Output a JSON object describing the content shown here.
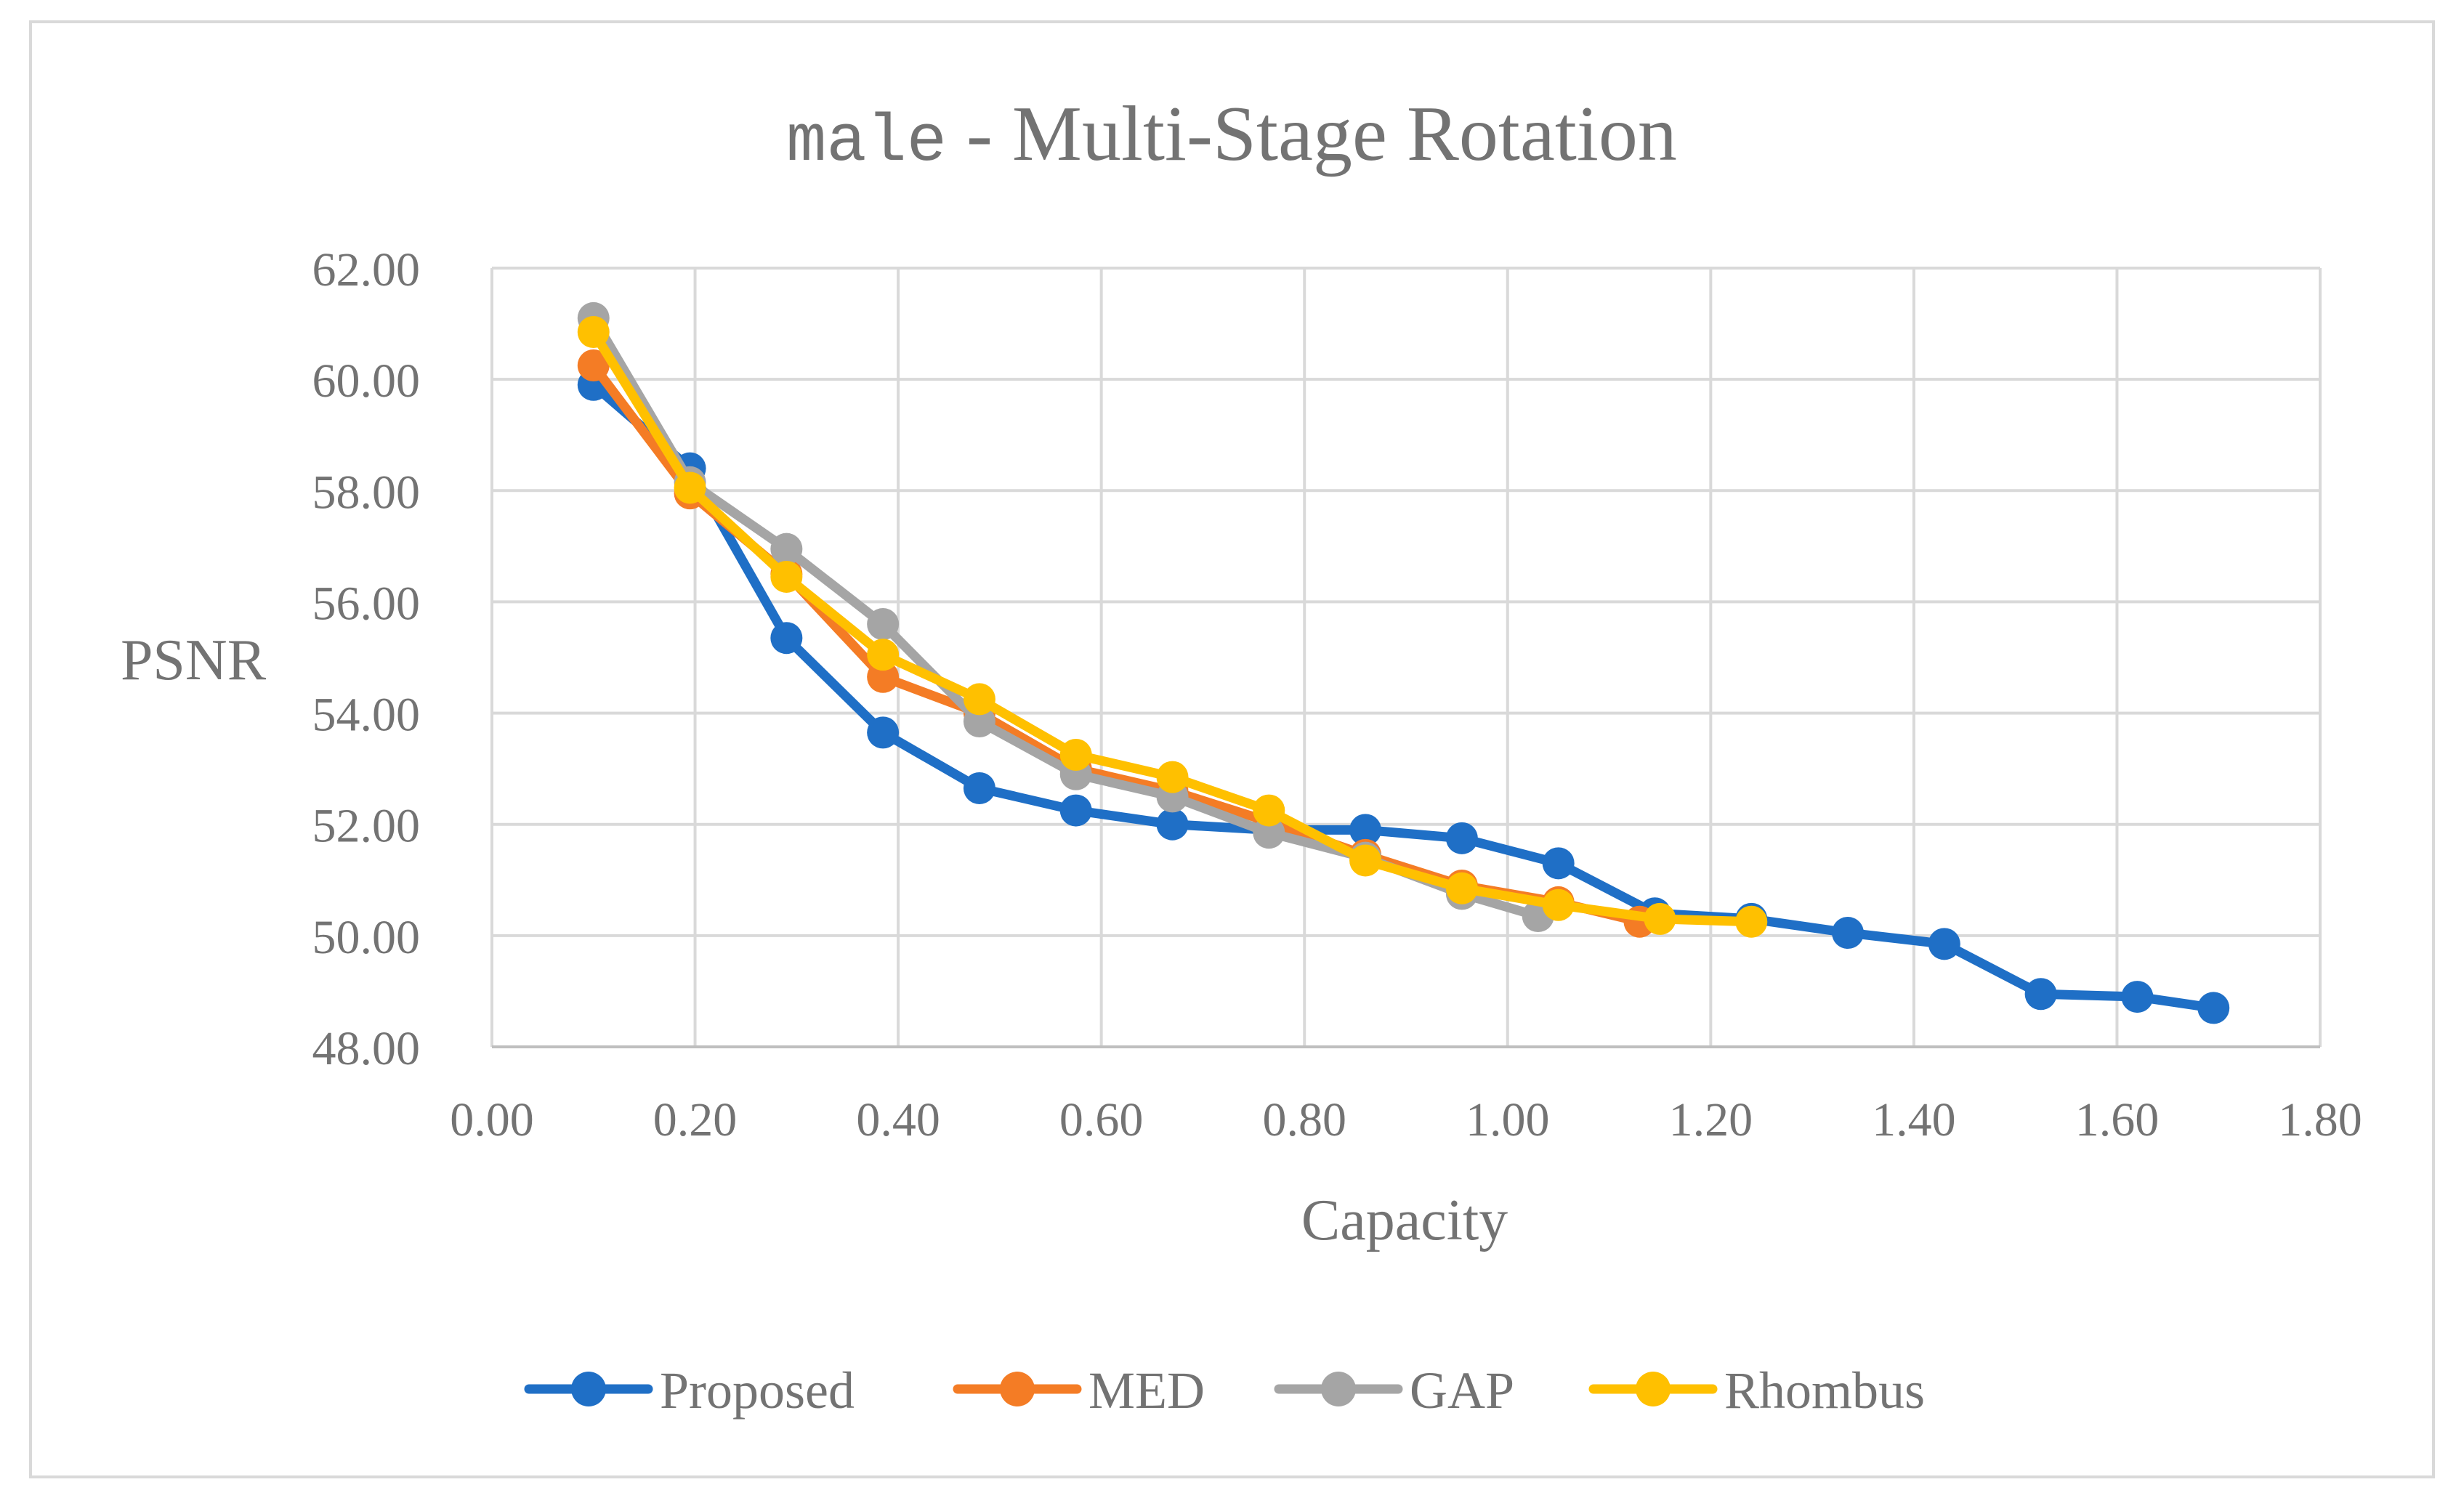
{
  "chart_data": {
    "type": "line",
    "title_mono": "male",
    "title_rest": " - Multi-Stage Rotation",
    "xlabel": "Capacity",
    "ylabel": "PSNR",
    "xlim": [
      0,
      1.8
    ],
    "ylim": [
      48,
      62
    ],
    "x_ticks": [
      "0.00",
      "0.20",
      "0.40",
      "0.60",
      "0.80",
      "1.00",
      "1.20",
      "1.40",
      "1.60",
      "1.80"
    ],
    "y_ticks": [
      "48.00",
      "50.00",
      "52.00",
      "54.00",
      "56.00",
      "58.00",
      "60.00",
      "62.00"
    ],
    "legend_position": "bottom",
    "grid": true,
    "series": [
      {
        "name": "Proposed",
        "color": "#1f6fc6",
        "x": [
          0.1,
          0.195,
          0.29,
          0.385,
          0.48,
          0.575,
          0.67,
          0.765,
          0.86,
          0.955,
          1.05,
          1.145,
          1.24,
          1.335,
          1.43,
          1.525,
          1.62,
          1.695
        ],
        "y": [
          59.9,
          58.4,
          55.35,
          53.65,
          52.65,
          52.25,
          52.0,
          51.9,
          51.9,
          51.75,
          51.3,
          50.4,
          50.3,
          50.05,
          49.85,
          48.95,
          48.9,
          48.7
        ]
      },
      {
        "name": "MED",
        "color": "#f47c25",
        "x": [
          0.1,
          0.195,
          0.29,
          0.385,
          0.48,
          0.575,
          0.67,
          0.765,
          0.86,
          0.955,
          1.05,
          1.13
        ],
        "y": [
          60.25,
          57.95,
          56.5,
          54.65,
          54.0,
          53.0,
          52.6,
          52.05,
          51.45,
          50.9,
          50.6,
          50.25
        ]
      },
      {
        "name": "GAP",
        "color": "#a5a5a5",
        "x": [
          0.1,
          0.195,
          0.29,
          0.385,
          0.48,
          0.575,
          0.67,
          0.765,
          0.86,
          0.955,
          1.03
        ],
        "y": [
          61.1,
          58.15,
          56.95,
          55.6,
          53.85,
          52.9,
          52.5,
          51.85,
          51.4,
          50.75,
          50.35
        ]
      },
      {
        "name": "Rhombus",
        "color": "#ffc000",
        "x": [
          0.1,
          0.195,
          0.29,
          0.385,
          0.48,
          0.575,
          0.67,
          0.765,
          0.86,
          0.955,
          1.05,
          1.15,
          1.24
        ],
        "y": [
          60.85,
          58.05,
          56.45,
          55.05,
          54.25,
          53.25,
          52.85,
          52.25,
          51.35,
          50.85,
          50.55,
          50.3,
          50.25
        ]
      }
    ]
  }
}
